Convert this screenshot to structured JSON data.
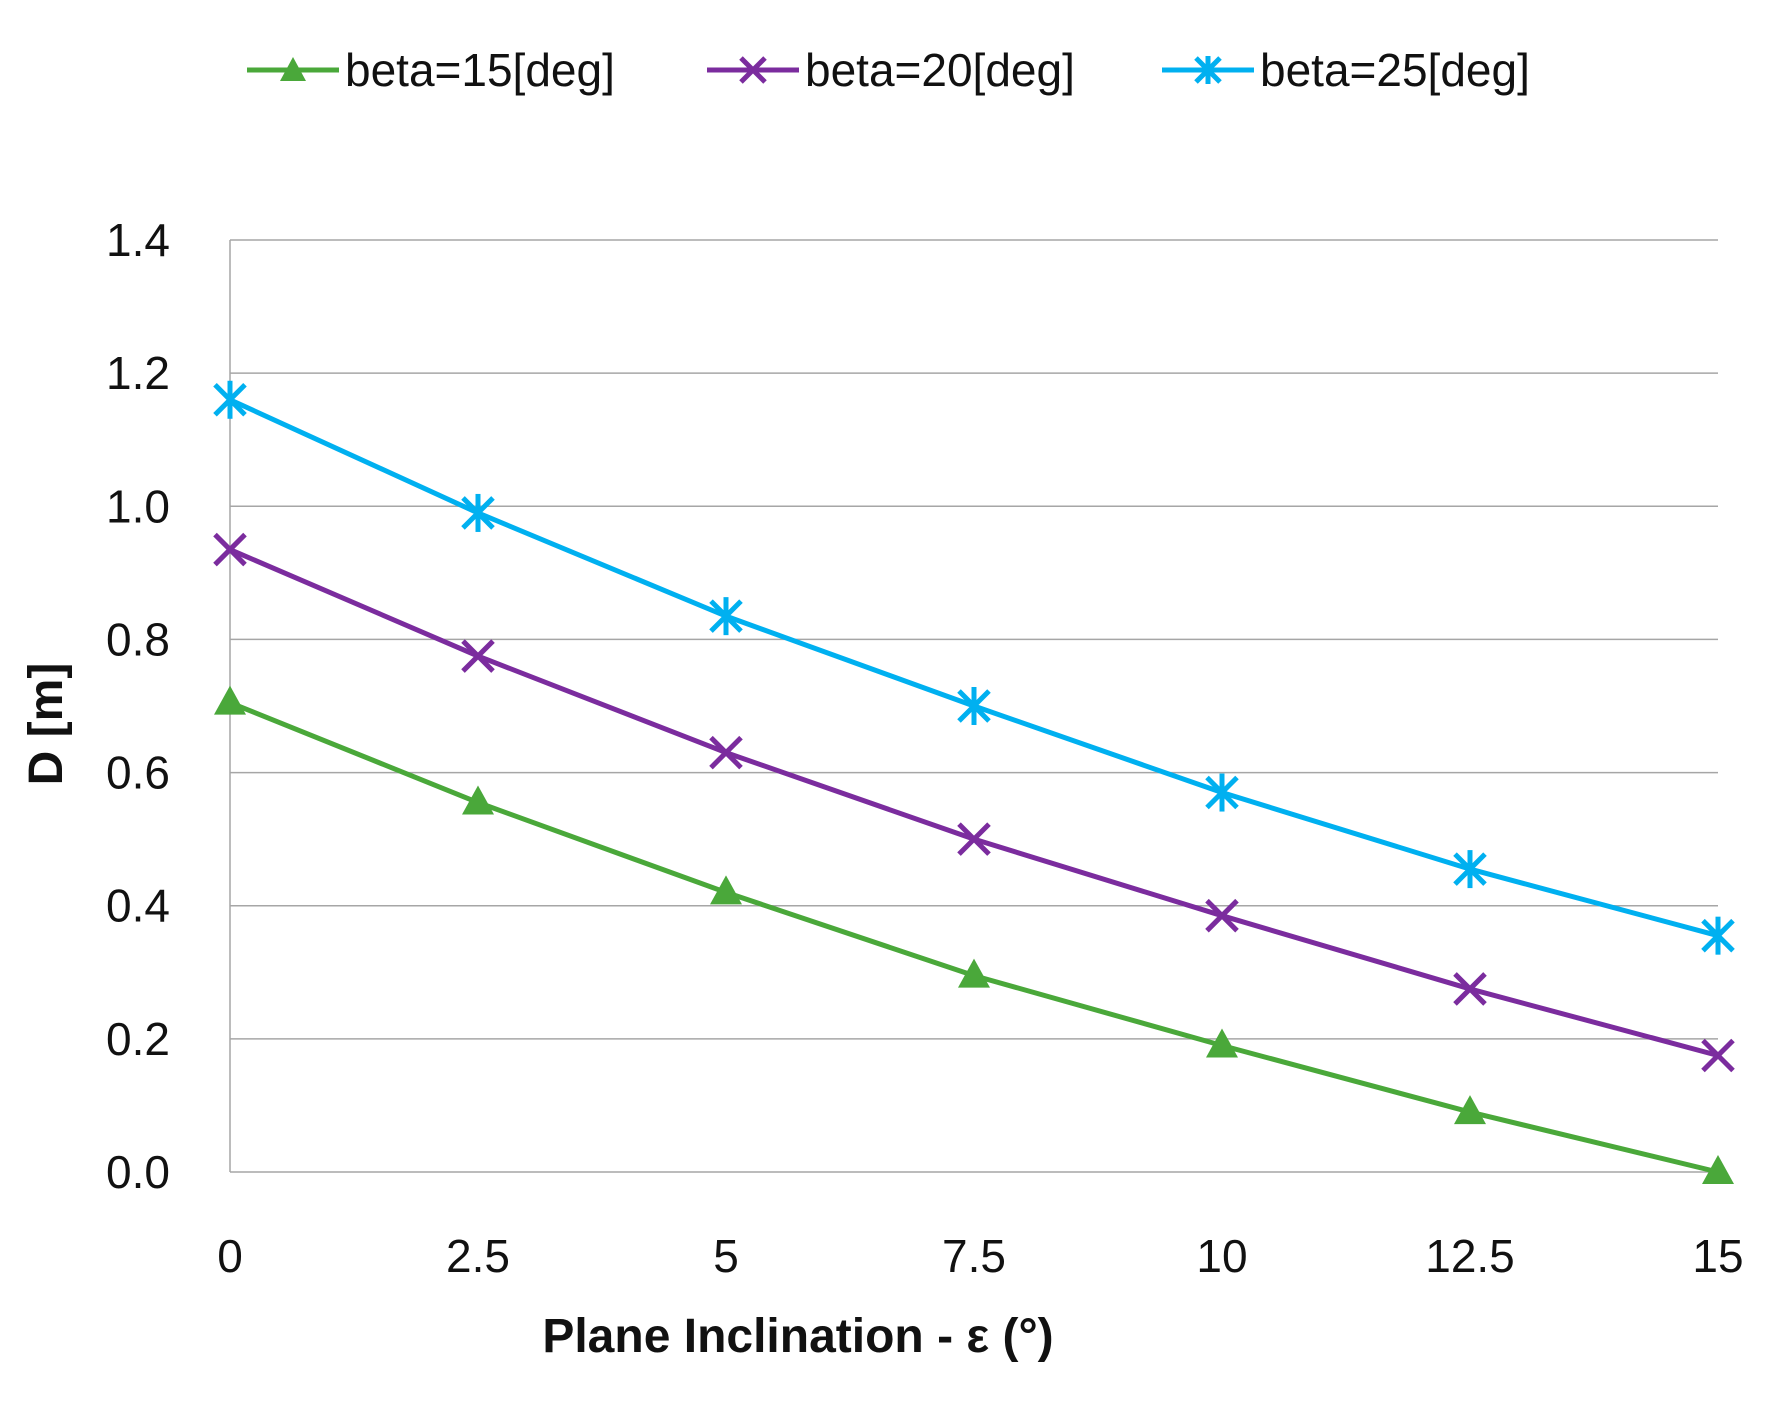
{
  "chart_data": {
    "type": "line",
    "title": "",
    "xlabel": "Plane Inclination - ε (°)",
    "ylabel": "D [m]",
    "x": [
      0,
      2.5,
      5,
      7.5,
      10,
      12.5,
      15
    ],
    "x_tick_labels": [
      "0",
      "2.5",
      "5",
      "7.5",
      "10",
      "12.5",
      "15"
    ],
    "y_tick_labels": [
      "0.0",
      "0.2",
      "0.4",
      "0.6",
      "0.8",
      "1.0",
      "1.2",
      "1.4"
    ],
    "xlim": [
      0,
      15
    ],
    "ylim": [
      0,
      1.4
    ],
    "y_ticks": [
      0,
      0.2,
      0.4,
      0.6,
      0.8,
      1.0,
      1.2,
      1.4
    ],
    "grid": true,
    "legend_position": "top",
    "series": [
      {
        "name": "beta=15[deg]",
        "color": "#4aa83a",
        "marker": "triangle",
        "values": [
          0.705,
          0.555,
          0.42,
          0.295,
          0.19,
          0.09,
          0.0
        ]
      },
      {
        "name": "beta=20[deg]",
        "color": "#7b2c9e",
        "marker": "x",
        "values": [
          0.935,
          0.775,
          0.63,
          0.5,
          0.385,
          0.275,
          0.175
        ]
      },
      {
        "name": "beta=25[deg]",
        "color": "#00b0f0",
        "marker": "star",
        "values": [
          1.16,
          0.99,
          0.835,
          0.7,
          0.57,
          0.455,
          0.355
        ]
      }
    ]
  }
}
